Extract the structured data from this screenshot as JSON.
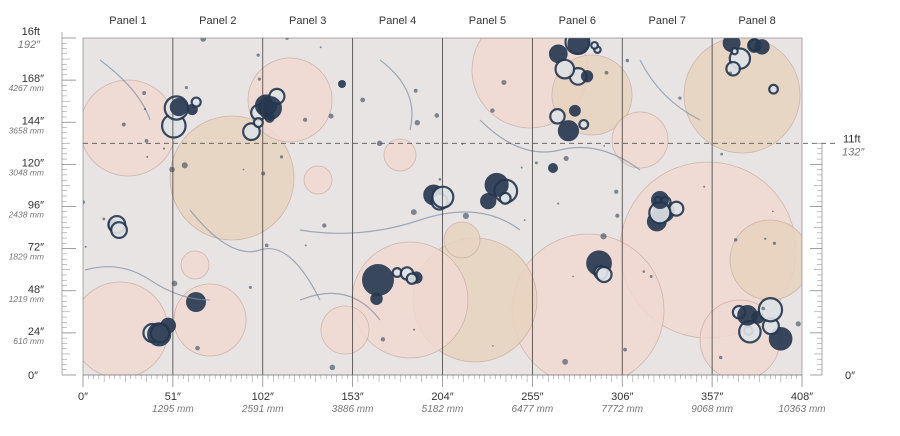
{
  "panels": [
    "Panel 1",
    "Panel 2",
    "Panel 3",
    "Panel 4",
    "Panel 5",
    "Panel 6",
    "Panel 7",
    "Panel 8"
  ],
  "left_axis": {
    "top_label": "16ft",
    "top_sub": "192″",
    "ticks": [
      {
        "inch": 168,
        "label": "168″",
        "mm": "4267 mm"
      },
      {
        "inch": 144,
        "label": "144″",
        "mm": "3658 mm"
      },
      {
        "inch": 120,
        "label": "120″",
        "mm": "3048 mm"
      },
      {
        "inch": 96,
        "label": "96″",
        "mm": "2438 mm"
      },
      {
        "inch": 72,
        "label": "72″",
        "mm": "1829 mm"
      },
      {
        "inch": 48,
        "label": "48″",
        "mm": "1219 mm"
      },
      {
        "inch": 24,
        "label": "24″",
        "mm": "610 mm"
      }
    ],
    "zero_label": "0″"
  },
  "bottom_axis": {
    "ticks": [
      {
        "inch": 0,
        "label": "0″",
        "mm": ""
      },
      {
        "inch": 51,
        "label": "51″",
        "mm": "1295 mm"
      },
      {
        "inch": 102,
        "label": "102″",
        "mm": "2591 mm"
      },
      {
        "inch": 153,
        "label": "153″",
        "mm": "3886 mm"
      },
      {
        "inch": 204,
        "label": "204″",
        "mm": "5182 mm"
      },
      {
        "inch": 255,
        "label": "255″",
        "mm": "6477 mm"
      },
      {
        "inch": 306,
        "label": "306″",
        "mm": "7772 mm"
      },
      {
        "inch": 357,
        "label": "357″",
        "mm": "9068 mm"
      },
      {
        "inch": 408,
        "label": "408″",
        "mm": "10363 mm"
      }
    ]
  },
  "right_axis": {
    "marker_label": "11ft",
    "marker_sub": "132″",
    "marker_inch": 132,
    "zero_label": "0″"
  },
  "colors": {
    "background": "#e8e4e3",
    "bubble_pink": "#f1d9d2",
    "bubble_beige": "#e9d4c0",
    "bubble_navy": "#25364f",
    "bubble_slate": "#7b8ea4"
  }
}
